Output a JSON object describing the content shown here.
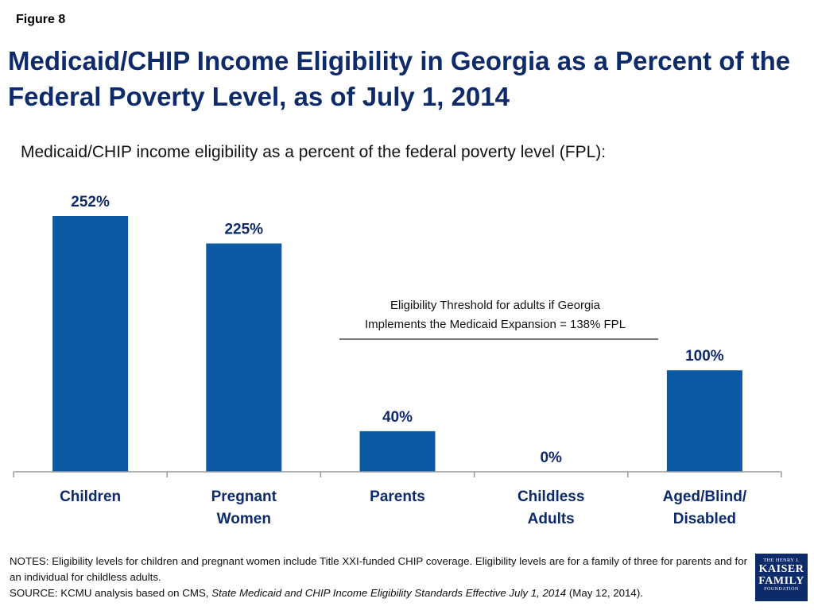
{
  "figure_label": "Figure 8",
  "title": "Medicaid/CHIP Income Eligibility in Georgia as a Percent of the Federal Poverty Level, as of July 1, 2014",
  "subtitle": "Medicaid/CHIP income eligibility as a percent of the federal poverty level (FPL):",
  "chart_data": {
    "type": "bar",
    "categories": [
      [
        "Children"
      ],
      [
        "Pregnant",
        "Women"
      ],
      [
        "Parents"
      ],
      [
        "Childless",
        "Adults"
      ],
      [
        "Aged/Blind/",
        "Disabled"
      ]
    ],
    "values": [
      252,
      225,
      40,
      0,
      100
    ],
    "value_labels": [
      "252%",
      "225%",
      "40%",
      "0%",
      "100%"
    ],
    "ylim": [
      0,
      260
    ],
    "grid": false,
    "bar_color": "#0b5aa3",
    "label_color": "#0d2a6b",
    "threshold": {
      "value": 138,
      "label_lines": [
        "Eligibility Threshold  for adults if Georgia",
        "Implements the Medicaid Expansion = 138% FPL"
      ]
    }
  },
  "notes": {
    "notes_text": "NOTES: Eligibility levels for children and pregnant women include Title XXI-funded CHIP coverage. Eligibility levels are for a family of three for parents and for an individual for childless adults.",
    "source_prefix": "SOURCE: KCMU analysis based on CMS, ",
    "source_title": "State Medicaid and CHIP Income Eligibility Standards Effective July 1, 2014",
    "source_suffix": " (May 12, 2014)."
  },
  "logo": {
    "line1": "THE HENRY J.",
    "line2": "KAISER",
    "line3": "FAMILY",
    "line4": "FOUNDATION"
  }
}
